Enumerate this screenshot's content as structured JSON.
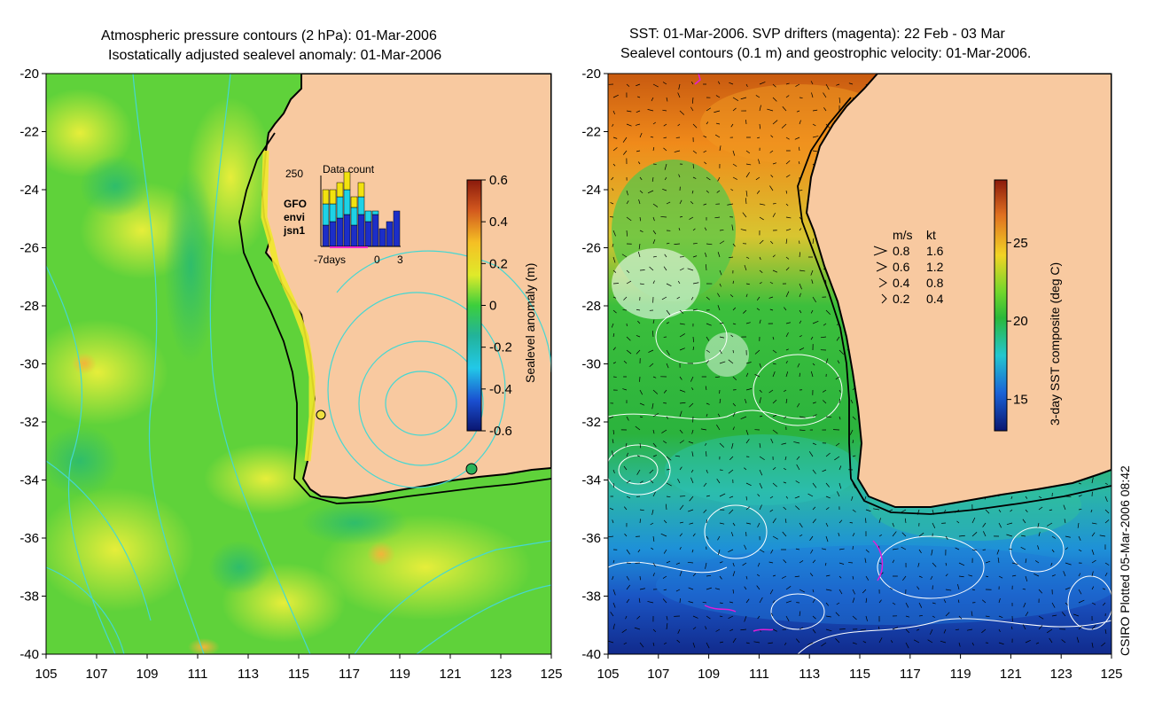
{
  "left_panel": {
    "title_line1": "Atmospheric pressure contours (2 hPa): 01-Mar-2006",
    "title_line2": "Isostatically adjusted sealevel anomaly: 01-Mar-2006",
    "colorbar": {
      "label": "Sealevel anomaly (m)",
      "ticks": [
        "0.6",
        "0.4",
        "0.2",
        "0",
        "-0.2",
        "-0.4",
        "-0.6"
      ],
      "range": [
        -0.6,
        0.6
      ]
    },
    "inset": {
      "title": "Data count",
      "ymax_label": "250",
      "xlabel_left": "-7days",
      "xlabel_zero": "0",
      "xlabel_right": "3",
      "legend": [
        {
          "name": "GFO",
          "color": "#f2e20f"
        },
        {
          "name": "envi",
          "color": "#1ed2e6"
        },
        {
          "name": "jsn1",
          "color": "#1c2ec8"
        }
      ],
      "bars": [
        {
          "jsn1": 0.3,
          "envi": 0.3,
          "gfo": 0.2
        },
        {
          "jsn1": 0.35,
          "envi": 0.25,
          "gfo": 0.2
        },
        {
          "jsn1": 0.4,
          "envi": 0.3,
          "gfo": 0.2
        },
        {
          "jsn1": 0.45,
          "envi": 0.35,
          "gfo": 0.25
        },
        {
          "jsn1": 0.3,
          "envi": 0.25,
          "gfo": 0.15
        },
        {
          "jsn1": 0.45,
          "envi": 0.25,
          "gfo": 0.2
        },
        {
          "jsn1": 0.35,
          "envi": 0.15,
          "gfo": 0.0
        },
        {
          "jsn1": 0.45,
          "envi": 0.05,
          "gfo": 0.0
        },
        {
          "jsn1": 0.25,
          "envi": 0.0,
          "gfo": 0.0
        },
        {
          "jsn1": 0.35,
          "envi": 0.0,
          "gfo": 0.0
        },
        {
          "jsn1": 0.5,
          "envi": 0.0,
          "gfo": 0.0
        }
      ]
    }
  },
  "right_panel": {
    "title_line1": "SST: 01-Mar-2006. SVP drifters (magenta): 22 Feb - 03 Mar",
    "title_line2": "Sealevel contours (0.1 m) and geostrophic velocity: 01-Mar-2006.",
    "colorbar": {
      "label": "3-day SST composite (deg C)",
      "ticks": [
        "25",
        "20",
        "15"
      ],
      "range": [
        13,
        29
      ]
    },
    "velocity_key": {
      "header_ms": "m/s",
      "header_kt": "kt",
      "rows": [
        {
          "ms": "0.8",
          "kt": "1.6"
        },
        {
          "ms": "0.6",
          "kt": "1.2"
        },
        {
          "ms": "0.4",
          "kt": "0.8"
        },
        {
          "ms": "0.2",
          "kt": "0.4"
        }
      ]
    }
  },
  "axes": {
    "lat_labels": [
      "-20",
      "-22",
      "-24",
      "-26",
      "-28",
      "-30",
      "-32",
      "-34",
      "-36",
      "-38",
      "-40"
    ],
    "lon_labels": [
      "105",
      "107",
      "109",
      "111",
      "113",
      "115",
      "117",
      "119",
      "121",
      "123",
      "125"
    ]
  },
  "credit": "CSIRO Plotted 05-Mar-2006 08:42",
  "colors": {
    "land": "#f8c9a0",
    "coast": "#000000",
    "ocean_green": "#5fd23a",
    "pressure_contour": "#45d7d2",
    "sst_contour": "#ffffff"
  }
}
